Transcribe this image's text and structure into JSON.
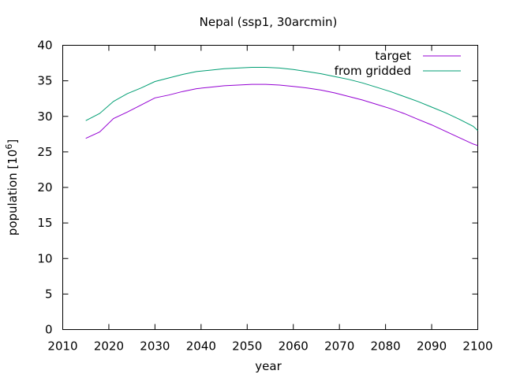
{
  "chart_data": {
    "type": "line",
    "title": "Nepal (ssp1, 30arcmin)",
    "xlabel": "year",
    "ylabel_main": "population [10",
    "ylabel_sup": "6",
    "ylabel_end": "]",
    "xlim": [
      2010,
      2100
    ],
    "ylim": [
      0,
      40
    ],
    "xticks": [
      2010,
      2020,
      2030,
      2040,
      2050,
      2060,
      2070,
      2080,
      2090,
      2100
    ],
    "yticks": [
      0,
      5,
      10,
      15,
      20,
      25,
      30,
      35,
      40
    ],
    "grid": false,
    "legend_position": "top-right",
    "x": [
      2015,
      2018,
      2021,
      2024,
      2027,
      2030,
      2033,
      2036,
      2039,
      2042,
      2045,
      2048,
      2051,
      2054,
      2057,
      2060,
      2063,
      2066,
      2069,
      2072,
      2075,
      2078,
      2081,
      2084,
      2087,
      2090,
      2093,
      2096,
      2099,
      2100
    ],
    "series": [
      {
        "name": "target",
        "color": "#9400d3",
        "values": [
          26.9,
          27.8,
          29.7,
          30.6,
          31.6,
          32.6,
          33.0,
          33.5,
          33.9,
          34.1,
          34.3,
          34.4,
          34.5,
          34.5,
          34.4,
          34.2,
          34.0,
          33.7,
          33.3,
          32.8,
          32.3,
          31.7,
          31.1,
          30.4,
          29.6,
          28.8,
          27.9,
          27.0,
          26.1,
          25.9
        ]
      },
      {
        "name": "from gridded",
        "color": "#009e73",
        "values": [
          29.4,
          30.4,
          32.1,
          33.2,
          34.0,
          34.9,
          35.4,
          35.9,
          36.3,
          36.5,
          36.7,
          36.8,
          36.9,
          36.9,
          36.8,
          36.6,
          36.3,
          36.0,
          35.6,
          35.2,
          34.7,
          34.1,
          33.5,
          32.8,
          32.1,
          31.3,
          30.5,
          29.6,
          28.6,
          28.0
        ]
      }
    ]
  }
}
